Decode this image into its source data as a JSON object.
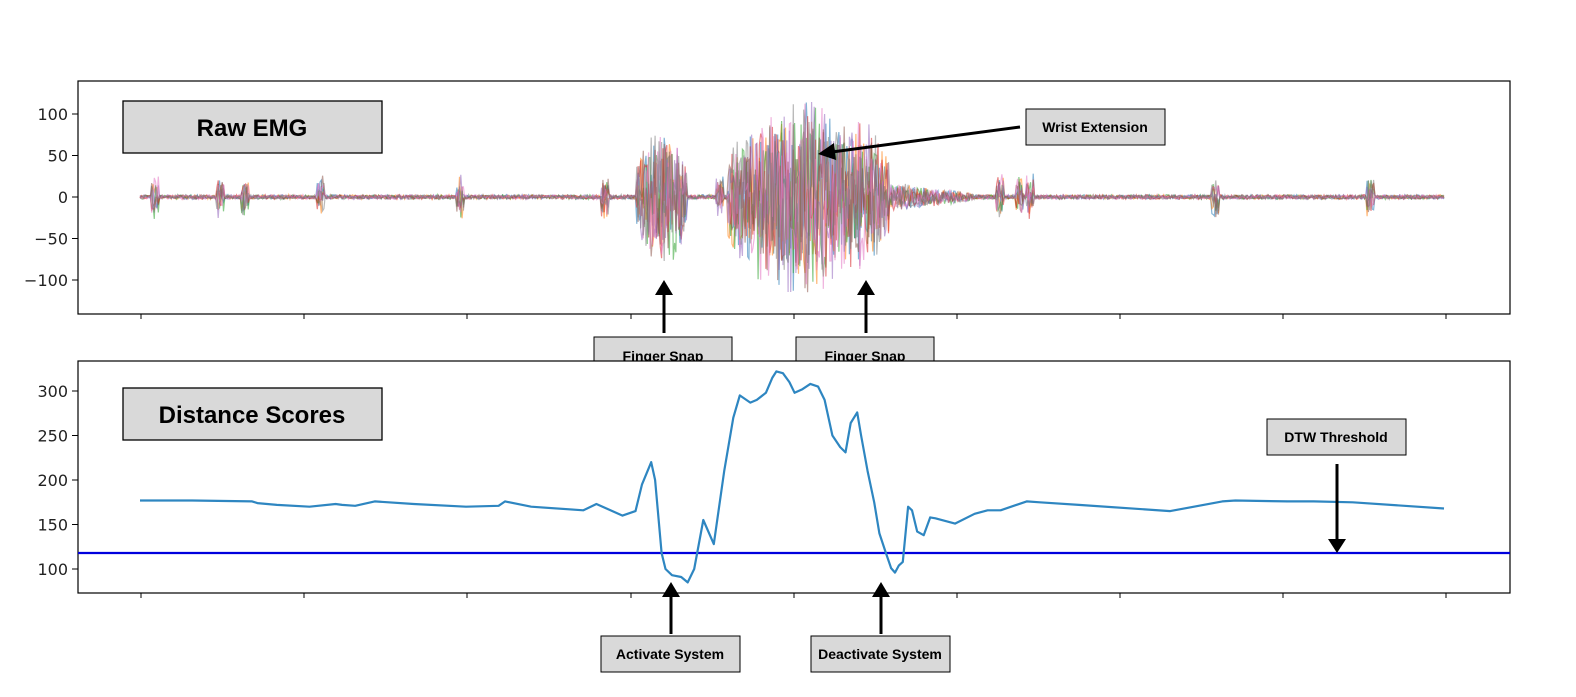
{
  "chart_data": [
    {
      "type": "line",
      "title": "Raw EMG",
      "ylim": [
        -140,
        135
      ],
      "yticks": [
        100,
        50,
        0,
        -50,
        -100
      ],
      "ytick_labels": [
        "100",
        "50",
        "0",
        "−50",
        "−100"
      ],
      "channels": 8,
      "series_colors": [
        "#1f77b4",
        "#ff7f0e",
        "#2ca02c",
        "#d62728",
        "#9467bd",
        "#8c564b",
        "#e377c2",
        "#7f7f7f"
      ],
      "x_range": [
        0,
        1000
      ],
      "bursts": [
        {
          "center": 400,
          "width": 40,
          "amplitude": 90
        },
        {
          "center": 505,
          "width": 110,
          "amplitude": 125
        },
        {
          "center": 555,
          "width": 40,
          "amplitude": 95
        }
      ],
      "annotations": [
        {
          "label": "Wrist Extension"
        },
        {
          "label": "Finger Snap"
        },
        {
          "label": "Finger Snap"
        }
      ]
    },
    {
      "type": "line",
      "title": "Distance Scores",
      "ylim": [
        73,
        327
      ],
      "yticks": [
        300,
        250,
        200,
        150,
        100
      ],
      "ytick_labels": [
        "300",
        "250",
        "200",
        "150",
        "100"
      ],
      "x_range": [
        0,
        1000
      ],
      "series": [
        {
          "color": "#2e86c1",
          "x": [
            0,
            40,
            86,
            90,
            105,
            130,
            150,
            155,
            165,
            180,
            210,
            250,
            275,
            280,
            300,
            340,
            350,
            370,
            380,
            385,
            392,
            395,
            400,
            403,
            408,
            415,
            420,
            425,
            432,
            440,
            448,
            455,
            460,
            468,
            473,
            480,
            485,
            488,
            493,
            498,
            502,
            508,
            514,
            520,
            525,
            531,
            537,
            541,
            545,
            550,
            553,
            558,
            563,
            567,
            572,
            576,
            579,
            582,
            585,
            589,
            592,
            596,
            601,
            606,
            610,
            625,
            640,
            650,
            660,
            680,
            690,
            720,
            790,
            830,
            840,
            880,
            900,
            930,
            1000
          ],
          "y": [
            177,
            177,
            176,
            174,
            172,
            170,
            173,
            172,
            171,
            176,
            173,
            170,
            171,
            176,
            170,
            166,
            173,
            160,
            165,
            195,
            220,
            200,
            118,
            100,
            93,
            91,
            85,
            100,
            155,
            128,
            210,
            270,
            295,
            287,
            290,
            298,
            315,
            322,
            320,
            310,
            298,
            302,
            308,
            305,
            290,
            250,
            237,
            231,
            264,
            276,
            250,
            210,
            175,
            140,
            118,
            101,
            96,
            104,
            108,
            170,
            166,
            142,
            138,
            158,
            157,
            151,
            162,
            166,
            166,
            176,
            175,
            172,
            165,
            176,
            177,
            176,
            176,
            175,
            168
          ]
        }
      ],
      "threshold": {
        "value": 118,
        "color": "#0000dd",
        "label": "DTW Threshold"
      },
      "annotations": [
        {
          "label": "Activate System"
        },
        {
          "label": "Deactivate System"
        }
      ]
    }
  ]
}
